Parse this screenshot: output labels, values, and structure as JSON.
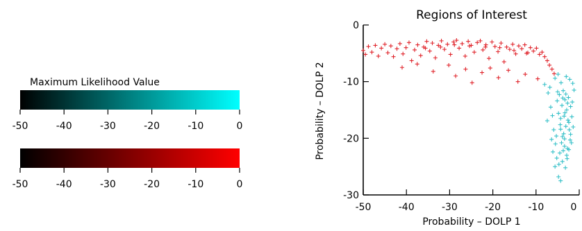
{
  "colorbars": {
    "title": "Maximum Likelihood Value",
    "ticks": [
      "-50",
      "-40",
      "-30",
      "-20",
      "-10",
      "0"
    ],
    "cyan_scale": {
      "from": "#000000",
      "to": "#00FFFF"
    },
    "red_scale": {
      "from": "#000000",
      "to": "#FF0000"
    },
    "range": [
      -50,
      0
    ]
  },
  "chart_data": {
    "type": "scatter",
    "title": "Regions of Interest",
    "xlabel": "Probability – DOLP 1",
    "ylabel": "Probability – DOLP 2",
    "xlim": [
      -50,
      0
    ],
    "ylim": [
      -30,
      0
    ],
    "x_ticks": [
      "-50",
      "-40",
      "-30",
      "-20",
      "-10",
      "0"
    ],
    "y_ticks": [
      "-30",
      "-20",
      "-10",
      "0"
    ],
    "grid": false,
    "marker": "+",
    "series": [
      {
        "color": "#E0242B",
        "points": [
          [
            -50,
            -4.5
          ],
          [
            -49.5,
            -5.2
          ],
          [
            -48.8,
            -3.8
          ],
          [
            -48,
            -4.8
          ],
          [
            -47.2,
            -3.6
          ],
          [
            -46.5,
            -5.5
          ],
          [
            -45.8,
            -4.1
          ],
          [
            -45,
            -3.4
          ],
          [
            -44.3,
            -4.9
          ],
          [
            -43.6,
            -3.7
          ],
          [
            -43,
            -5.6
          ],
          [
            -42.2,
            -4.2
          ],
          [
            -41.5,
            -3.3
          ],
          [
            -40.8,
            -5.1
          ],
          [
            -40.1,
            -4
          ],
          [
            -39.4,
            -3.1
          ],
          [
            -38.8,
            -6.3
          ],
          [
            -38.1,
            -4.4
          ],
          [
            -37.4,
            -3.5
          ],
          [
            -36.7,
            -5.4
          ],
          [
            -36,
            -3.9
          ],
          [
            -35.3,
            -2.9
          ],
          [
            -34.6,
            -4.6
          ],
          [
            -34,
            -3.2
          ],
          [
            -33.3,
            -5.8
          ],
          [
            -32.6,
            -3.6
          ],
          [
            -31.9,
            -2.8
          ],
          [
            -31.2,
            -4.3
          ],
          [
            -30.5,
            -3.4
          ],
          [
            -29.8,
            -5.2
          ],
          [
            -29.1,
            -3
          ],
          [
            -28.4,
            -2.7
          ],
          [
            -27.8,
            -4.1
          ],
          [
            -27.1,
            -3.3
          ],
          [
            -26.4,
            -5.5
          ],
          [
            -25.7,
            -2.9
          ],
          [
            -25,
            -3.6
          ],
          [
            -24.3,
            -4.8
          ],
          [
            -23.6,
            -3.1
          ],
          [
            -22.9,
            -2.8
          ],
          [
            -22.3,
            -4.4
          ],
          [
            -21.6,
            -3.5
          ],
          [
            -20.9,
            -5.9
          ],
          [
            -20.2,
            -3
          ],
          [
            -19.5,
            -3.8
          ],
          [
            -18.8,
            -4.7
          ],
          [
            -18.1,
            -3.2
          ],
          [
            -17.4,
            -6.5
          ],
          [
            -16.8,
            -3.9
          ],
          [
            -16.1,
            -4.3
          ],
          [
            -15.4,
            -3.4
          ],
          [
            -14.7,
            -5.1
          ],
          [
            -14,
            -3.7
          ],
          [
            -13.3,
            -4.2
          ],
          [
            -12.6,
            -3.5
          ],
          [
            -11.9,
            -4.9
          ],
          [
            -11.3,
            -4
          ],
          [
            -10.6,
            -4.6
          ],
          [
            -9.9,
            -4.1
          ],
          [
            -9.2,
            -5.2
          ],
          [
            -8.6,
            -4.8
          ],
          [
            -8,
            -5.6
          ],
          [
            -7.4,
            -6.3
          ],
          [
            -6.9,
            -7.1
          ],
          [
            -6.3,
            -7.8
          ],
          [
            -5.8,
            -8.6
          ],
          [
            -41,
            -7.5
          ],
          [
            -37.5,
            -6.9
          ],
          [
            -33.8,
            -8.2
          ],
          [
            -30.2,
            -7.1
          ],
          [
            -28.6,
            -9
          ],
          [
            -26.3,
            -7.8
          ],
          [
            -24.8,
            -10.2
          ],
          [
            -22.5,
            -8.4
          ],
          [
            -20.6,
            -7.6
          ],
          [
            -18.7,
            -9.3
          ],
          [
            -16.4,
            -8
          ],
          [
            -14.2,
            -10
          ],
          [
            -12.5,
            -8.7
          ],
          [
            -9.6,
            -9.5
          ],
          [
            -35.6,
            -4.1
          ],
          [
            -32.1,
            -3.9
          ],
          [
            -28.9,
            -3.5
          ],
          [
            -25.4,
            -3.7
          ],
          [
            -21.7,
            -3.9
          ],
          [
            -18.4,
            -4
          ],
          [
            -15.1,
            -4.5
          ],
          [
            -12.2,
            -5
          ]
        ]
      },
      {
        "color": "#35C0C8",
        "points": [
          [
            -8,
            -10.5
          ],
          [
            -7.2,
            -12
          ],
          [
            -6.6,
            -14.5
          ],
          [
            -6.2,
            -16
          ],
          [
            -5.9,
            -18.5
          ],
          [
            -5.5,
            -21
          ],
          [
            -5.2,
            -23.5
          ],
          [
            -5.6,
            -25
          ],
          [
            -4.8,
            -26.8
          ],
          [
            -4.3,
            -27.5
          ],
          [
            -6.8,
            -11
          ],
          [
            -5.6,
            -9.4
          ],
          [
            -4.9,
            -8.7
          ],
          [
            -4.2,
            -10.2
          ],
          [
            -3.7,
            -11.6
          ],
          [
            -3.3,
            -13.2
          ],
          [
            -2.9,
            -15
          ],
          [
            -2.6,
            -16.8
          ],
          [
            -2.3,
            -18.5
          ],
          [
            -2.1,
            -20.3
          ],
          [
            -2.4,
            -22
          ],
          [
            -2.8,
            -23.6
          ],
          [
            -3.4,
            -21.4
          ],
          [
            -3.9,
            -19.7
          ],
          [
            -4.4,
            -17.6
          ],
          [
            -4.8,
            -15.6
          ],
          [
            -5.1,
            -13.4
          ],
          [
            -4.6,
            -12.3
          ],
          [
            -4,
            -14.2
          ],
          [
            -3.5,
            -16.1
          ],
          [
            -3.1,
            -17.9
          ],
          [
            -3.6,
            -19.2
          ],
          [
            -4.1,
            -20.8
          ],
          [
            -4.5,
            -22.6
          ],
          [
            -3.9,
            -24.1
          ],
          [
            -3.2,
            -25.2
          ],
          [
            -2.5,
            -12.8
          ],
          [
            -2,
            -14.4
          ],
          [
            -1.7,
            -16.2
          ],
          [
            -1.4,
            -18
          ],
          [
            -1.2,
            -11.5
          ],
          [
            -1.5,
            -10.3
          ],
          [
            -2.2,
            -9.6
          ],
          [
            -3,
            -9.1
          ],
          [
            -3.8,
            -12.9
          ],
          [
            -2.7,
            -13.8
          ],
          [
            -3.3,
            -15.5
          ],
          [
            -4.3,
            -16.5
          ],
          [
            -3.4,
            -20.1
          ],
          [
            -2.7,
            -21.8
          ],
          [
            -2,
            -19.3
          ],
          [
            -1.6,
            -13.6
          ],
          [
            -5.3,
            -19.6
          ],
          [
            -4.7,
            -24.6
          ],
          [
            -6.1,
            -22.4
          ],
          [
            -7.4,
            -16.9
          ],
          [
            -6.4,
            -20.2
          ],
          [
            -5,
            -11.8
          ],
          [
            -4.3,
            -18.4
          ],
          [
            -2.4,
            -17.2
          ],
          [
            -3.1,
            -12.2
          ],
          [
            -1.8,
            -20.8
          ],
          [
            -2.9,
            -23
          ],
          [
            -3.7,
            -22.2
          ]
        ]
      }
    ]
  }
}
